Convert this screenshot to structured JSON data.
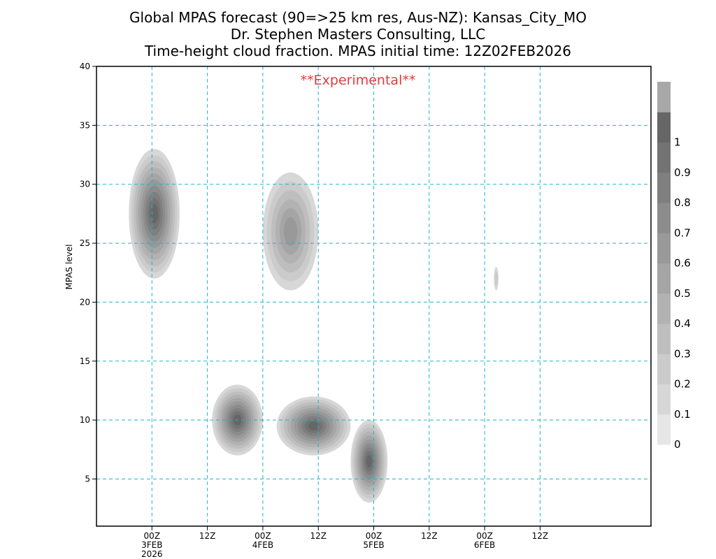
{
  "chart_data": {
    "type": "heatmap",
    "title_lines": [
      "Global MPAS forecast (90=>25 km res, Aus-NZ): Kansas_City_MO",
      "Dr. Stephen Masters Consulting, LLC",
      "Time-height cloud fraction.   MPAS initial time: 12Z02FEB2026"
    ],
    "annotation": {
      "text": "**Experimental**",
      "color": "#e03c3c"
    },
    "ylabel": "MPAS level",
    "ylim": [
      1,
      40
    ],
    "yticks": [
      5,
      10,
      15,
      20,
      25,
      30,
      35,
      40
    ],
    "xlim_hours_from_init": [
      -12,
      108
    ],
    "xticks": [
      {
        "hour": 0,
        "label": "00Z",
        "sub": "3FEB",
        "sub2": "2026"
      },
      {
        "hour": 12,
        "label": "12Z",
        "sub": "",
        "sub2": ""
      },
      {
        "hour": 24,
        "label": "00Z",
        "sub": "4FEB",
        "sub2": ""
      },
      {
        "hour": 36,
        "label": "12Z",
        "sub": "",
        "sub2": ""
      },
      {
        "hour": 48,
        "label": "00Z",
        "sub": "5FEB",
        "sub2": ""
      },
      {
        "hour": 60,
        "label": "12Z",
        "sub": "",
        "sub2": ""
      },
      {
        "hour": 72,
        "label": "00Z",
        "sub": "6FEB",
        "sub2": ""
      },
      {
        "hour": 84,
        "label": "12Z",
        "sub": "",
        "sub2": ""
      }
    ],
    "grid": true,
    "grid_color": "#1fb5c9",
    "colorbar": {
      "labels": [
        "0",
        "0.1",
        "0.2",
        "0.3",
        "0.4",
        "0.5",
        "0.6",
        "0.7",
        "0.8",
        "0.9",
        "1"
      ],
      "colors": [
        "#e6e6e6",
        "#d7d7d7",
        "#cbcbcb",
        "#bebebe",
        "#b2b2b2",
        "#a5a5a5",
        "#999999",
        "#8c8c8c",
        "#7f7f7f",
        "#737373",
        "#666666",
        "#a8a8a8"
      ]
    },
    "cloud_blobs": [
      {
        "x_hours": [
          -5,
          6
        ],
        "levels": [
          22,
          33
        ],
        "peak": 0.95
      },
      {
        "x_hours": [
          24,
          36
        ],
        "levels": [
          21,
          31
        ],
        "peak": 0.55
      },
      {
        "x_hours": [
          13,
          24
        ],
        "levels": [
          7,
          13
        ],
        "peak": 0.95
      },
      {
        "x_hours": [
          27,
          43
        ],
        "levels": [
          7,
          12
        ],
        "peak": 0.95
      },
      {
        "x_hours": [
          43,
          51
        ],
        "levels": [
          3,
          10
        ],
        "peak": 1.0
      },
      {
        "x_hours": [
          74,
          75
        ],
        "levels": [
          21,
          23
        ],
        "peak": 0.15
      }
    ]
  }
}
